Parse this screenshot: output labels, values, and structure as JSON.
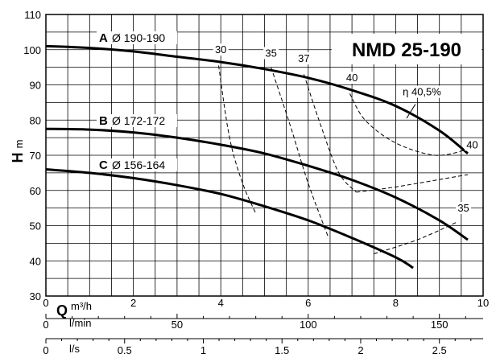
{
  "chart_data": {
    "type": "line",
    "title": "NMD 25-190",
    "ylabel": {
      "main": "H",
      "unit": "m"
    },
    "xlabel": {
      "main": "Q",
      "unit": "m³/h"
    },
    "flow_label_lmin": "l/min",
    "flow_label_ls": "l/s",
    "xlim": [
      0,
      10
    ],
    "ylim": [
      30,
      110
    ],
    "grid": true,
    "y_ticks": [
      "30",
      "40",
      "50",
      "60",
      "70",
      "80",
      "90",
      "100",
      "110"
    ],
    "x_ticks_m3h": [
      {
        "v": 0,
        "t": "0"
      },
      {
        "v": 2,
        "t": "2"
      },
      {
        "v": 4,
        "t": "4"
      },
      {
        "v": 6,
        "t": "6"
      },
      {
        "v": 8,
        "t": "8"
      },
      {
        "v": 10,
        "t": "10"
      }
    ],
    "x_ticks_lmin": [
      {
        "v": 0,
        "t": "0"
      },
      {
        "v": 50,
        "t": "50"
      },
      {
        "v": 100,
        "t": "100"
      },
      {
        "v": 150,
        "t": "150"
      }
    ],
    "x_ticks_ls": [
      {
        "v": 0,
        "t": "0"
      },
      {
        "v": 0.5,
        "t": "0.5"
      },
      {
        "v": 1,
        "t": "1"
      },
      {
        "v": 1.5,
        "t": "1.5"
      },
      {
        "v": 2,
        "t": "2"
      },
      {
        "v": 2.5,
        "t": "2.5"
      }
    ],
    "series": [
      {
        "letter": "A",
        "name": "Ø 190-190",
        "x": [
          0,
          1,
          2,
          3,
          4,
          5,
          6,
          7,
          8,
          9,
          9.65
        ],
        "y": [
          101,
          100.5,
          99.5,
          98,
          96.5,
          94.5,
          92,
          88.5,
          84,
          77,
          70.5
        ]
      },
      {
        "letter": "B",
        "name": "Ø 172-172",
        "x": [
          0,
          1,
          2,
          3,
          4,
          5,
          6,
          7,
          8,
          9,
          9.65
        ],
        "y": [
          77.5,
          77.3,
          76.5,
          75,
          73,
          70.5,
          67,
          63,
          58,
          51.5,
          46
        ]
      },
      {
        "letter": "C",
        "name": "Ø 156-164",
        "x": [
          0,
          1,
          2,
          3,
          4,
          5,
          6,
          7,
          8,
          8.4
        ],
        "y": [
          66,
          65,
          63.5,
          61.5,
          59,
          55.5,
          51.5,
          46.5,
          41,
          38
        ]
      }
    ],
    "efficiency_curves": [
      {
        "label": "30",
        "points": [
          [
            3.95,
            95.5
          ],
          [
            4.2,
            75
          ],
          [
            4.5,
            62
          ],
          [
            4.8,
            53.5
          ]
        ]
      },
      {
        "label": "35",
        "points": [
          [
            5.15,
            95
          ],
          [
            5.6,
            78
          ],
          [
            6.0,
            62
          ],
          [
            6.45,
            47
          ]
        ]
      },
      {
        "label": "37",
        "points": [
          [
            5.9,
            93
          ],
          [
            6.3,
            78
          ],
          [
            6.7,
            65
          ],
          [
            7.1,
            59.5
          ]
        ]
      },
      {
        "label": "40",
        "points": [
          [
            6.95,
            87.5
          ],
          [
            7.3,
            80
          ],
          [
            8.0,
            73.5
          ],
          [
            8.9,
            70
          ],
          [
            9.6,
            71.5
          ]
        ]
      },
      {
        "label": "40",
        "points": [
          [
            7.1,
            59.5
          ],
          [
            8.0,
            61
          ],
          [
            9.65,
            64.5
          ]
        ]
      },
      {
        "label": "35",
        "points": [
          [
            7.5,
            42
          ],
          [
            8.5,
            46
          ],
          [
            9.4,
            51
          ]
        ]
      }
    ],
    "eta_label": "η 40,5%",
    "annotations": [
      {
        "text": "30",
        "x": 4.0,
        "y": 99
      },
      {
        "text": "35",
        "x": 5.15,
        "y": 98
      },
      {
        "text": "37",
        "x": 5.9,
        "y": 96.5
      },
      {
        "text": "40",
        "x": 7.0,
        "y": 91
      },
      {
        "text": "η 40,5%",
        "x": 8.6,
        "y": 87
      },
      {
        "text": "40",
        "x": 9.75,
        "y": 72
      },
      {
        "text": "35",
        "x": 9.55,
        "y": 54
      }
    ]
  }
}
